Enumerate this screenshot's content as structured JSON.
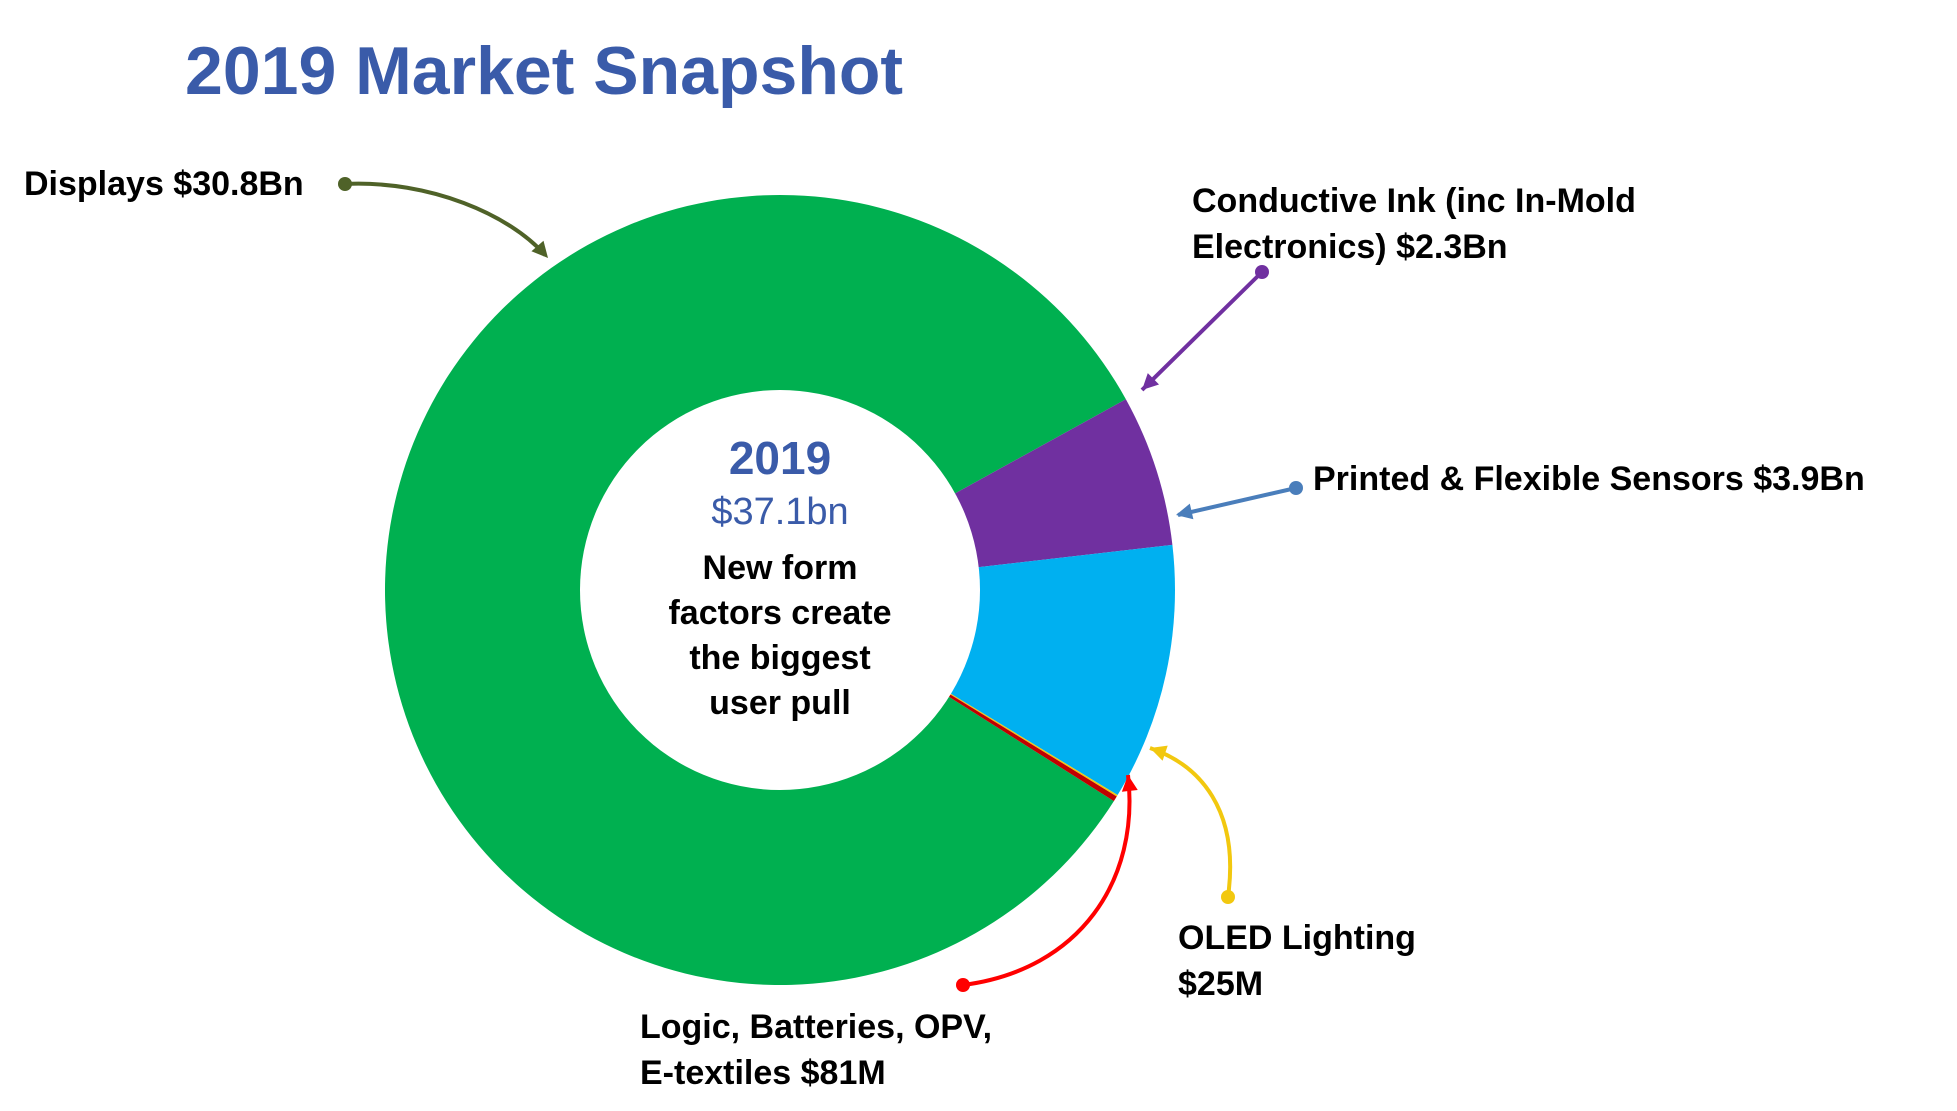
{
  "title": "2019 Market Snapshot",
  "center": {
    "year": "2019",
    "total": "$37.1bn",
    "note_lines": [
      "New form",
      "factors create",
      "the biggest",
      "user pull"
    ]
  },
  "callouts": [
    {
      "key": "displays",
      "lines": [
        "Displays $30.8Bn"
      ],
      "color": "#4f6228"
    },
    {
      "key": "conductive",
      "lines": [
        "Conductive Ink (inc In-Mold",
        "Electronics) $2.3Bn"
      ],
      "color": "#7030a0"
    },
    {
      "key": "sensors",
      "lines": [
        "Printed & Flexible Sensors $3.9Bn"
      ],
      "color": "#4a7ebb"
    },
    {
      "key": "oled",
      "lines": [
        "OLED Lighting",
        "$25M"
      ],
      "color": "#f2c80f"
    },
    {
      "key": "logic",
      "lines": [
        "Logic, Batteries, OPV,",
        "E-textiles $81M"
      ],
      "color": "#ff0000"
    }
  ],
  "chart_data": {
    "type": "pie",
    "donut": true,
    "title": "2019 Market Snapshot",
    "total_label": "$37.1bn",
    "series": [
      {
        "name": "Displays",
        "value": 30.8,
        "unit": "Bn",
        "color": "#00b050"
      },
      {
        "name": "Conductive Ink (inc In-Mold Electronics)",
        "value": 2.3,
        "unit": "Bn",
        "color": "#7030a0"
      },
      {
        "name": "Printed & Flexible Sensors",
        "value": 3.9,
        "unit": "Bn",
        "color": "#00b0f0"
      },
      {
        "name": "OLED Lighting",
        "value": 0.025,
        "unit": "Bn",
        "color": "#f2c80f"
      },
      {
        "name": "Logic, Batteries, OPV, E-textiles",
        "value": 0.081,
        "unit": "Bn",
        "color": "#c00000"
      }
    ]
  }
}
